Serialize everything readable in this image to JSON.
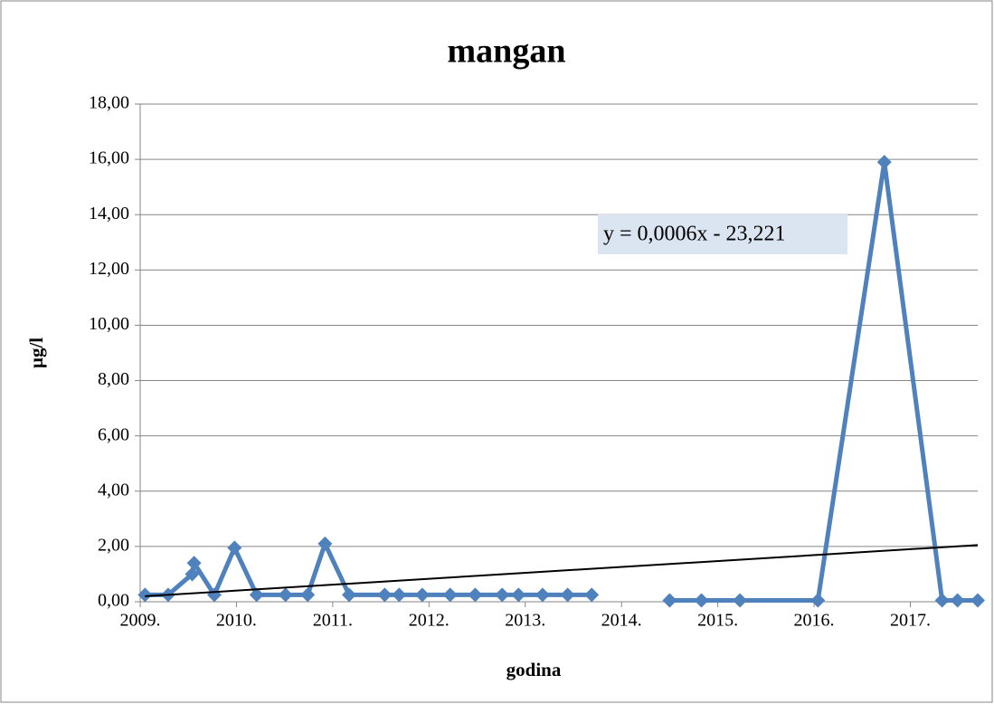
{
  "chart_data": {
    "type": "line",
    "title": "mangan",
    "x_label": "godina",
    "y_label": "µg/l",
    "x": [
      2009.05,
      2009.29,
      2009.54,
      2009.56,
      2009.77,
      2009.98,
      2010.21,
      2010.51,
      2010.74,
      2010.92,
      2011.17,
      2011.54,
      2011.69,
      2011.93,
      2012.22,
      2012.48,
      2012.76,
      2012.93,
      2013.18,
      2013.44,
      2013.69,
      2014.1,
      2014.5,
      2014.83,
      2015.23,
      2016.04,
      2016.73,
      2017.33,
      2017.49,
      2017.7
    ],
    "series": [
      {
        "color": "#4f81bd",
        "values": [
          0.25,
          0.25,
          1.0,
          1.4,
          0.25,
          1.95,
          0.25,
          0.25,
          0.25,
          2.1,
          0.25,
          0.25,
          0.25,
          0.25,
          0.25,
          0.25,
          0.25,
          0.25,
          0.25,
          0.25,
          0.25,
          null,
          0.05,
          0.05,
          0.05,
          0.05,
          15.9,
          0.05,
          0.05,
          0.05
        ]
      }
    ],
    "trendline": {
      "x": [
        2009.05,
        2017.7
      ],
      "values": [
        0.2,
        2.05
      ],
      "color": "#000000",
      "equation": "y = 0,0006x - 23,221"
    },
    "xlim": [
      2009,
      2017.7
    ],
    "xticks": [
      {
        "value": 2009,
        "label": "2009."
      },
      {
        "value": 2010,
        "label": "2010."
      },
      {
        "value": 2011,
        "label": "2011."
      },
      {
        "value": 2012,
        "label": "2012."
      },
      {
        "value": 2013,
        "label": "2013."
      },
      {
        "value": 2014,
        "label": "2014."
      },
      {
        "value": 2015,
        "label": "2015."
      },
      {
        "value": 2016,
        "label": "2016."
      },
      {
        "value": 2017,
        "label": "2017."
      }
    ],
    "ylim": [
      0,
      18
    ],
    "yticks": [
      {
        "value": 0,
        "label": "0,00"
      },
      {
        "value": 2,
        "label": "2,00"
      },
      {
        "value": 4,
        "label": "4,00"
      },
      {
        "value": 6,
        "label": "6,00"
      },
      {
        "value": 8,
        "label": "8,00"
      },
      {
        "value": 10,
        "label": "10,00"
      },
      {
        "value": 12,
        "label": "12,00"
      },
      {
        "value": 14,
        "label": "14,00"
      },
      {
        "value": 16,
        "label": "16,00"
      },
      {
        "value": 18,
        "label": "18,00"
      }
    ],
    "grid": true
  }
}
